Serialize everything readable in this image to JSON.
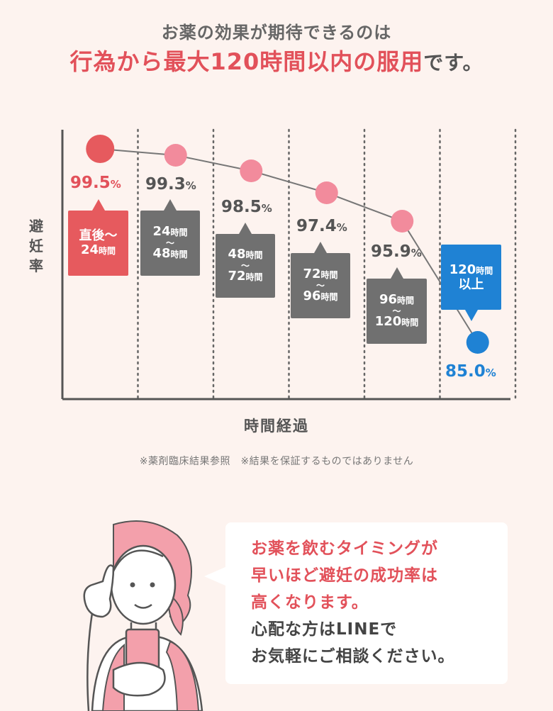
{
  "header": {
    "line1": "お薬の効果が期待できるのは",
    "line2_main": "行為から最大120時間以内の服用",
    "line2_suffix": "です。"
  },
  "chart_data": {
    "type": "line",
    "ylabel": "避妊率",
    "xlabel": "時間経過",
    "categories": [
      "直後〜24時間",
      "24時間〜48時間",
      "48時間〜72時間",
      "72時間〜96時間",
      "96時間〜120時間",
      "120時間以上"
    ],
    "values": [
      99.5,
      99.3,
      98.5,
      97.4,
      95.9,
      85.0
    ],
    "value_labels": [
      "99.5",
      "99.3",
      "98.5",
      "97.4",
      "95.9",
      "85.0"
    ],
    "unit": "%",
    "colors": [
      "#e65a5e",
      "#f28b9c",
      "#f28b9c",
      "#f28b9c",
      "#f28b9c",
      "#1f82d4"
    ],
    "label_colors": [
      "#e2515a",
      "#555555",
      "#555555",
      "#555555",
      "#555555",
      "#1f82d4"
    ],
    "box_colors": [
      "#e65a5e",
      "#707070",
      "#707070",
      "#707070",
      "#707070",
      "#1f82d4"
    ],
    "boxes": [
      {
        "l1": "直後〜",
        "l3": "24",
        "s3": "時間"
      },
      {
        "l1": "24",
        "s1": "時間",
        "wave": "〜",
        "l3": "48",
        "s3": "時間"
      },
      {
        "l1": "48",
        "s1": "時間",
        "wave": "〜",
        "l3": "72",
        "s3": "時間"
      },
      {
        "l1": "72",
        "s1": "時間",
        "wave": "〜",
        "l3": "96",
        "s3": "時間"
      },
      {
        "l1": "96",
        "s1": "時間",
        "wave": "〜",
        "l3": "120",
        "s3": "時間"
      },
      {
        "l1": "120",
        "s1": "時間",
        "l3": "以上"
      }
    ],
    "grid": true
  },
  "note": "※薬剤臨床結果参照　※結果を保証するものではありません",
  "bubble": {
    "red_lines": [
      "お薬を飲むタイミングが",
      "早いほど避妊の成功率は",
      "高くなります。"
    ],
    "dark_lines": [
      "心配な方はLINEで",
      "お気軽にご相談ください。"
    ]
  }
}
